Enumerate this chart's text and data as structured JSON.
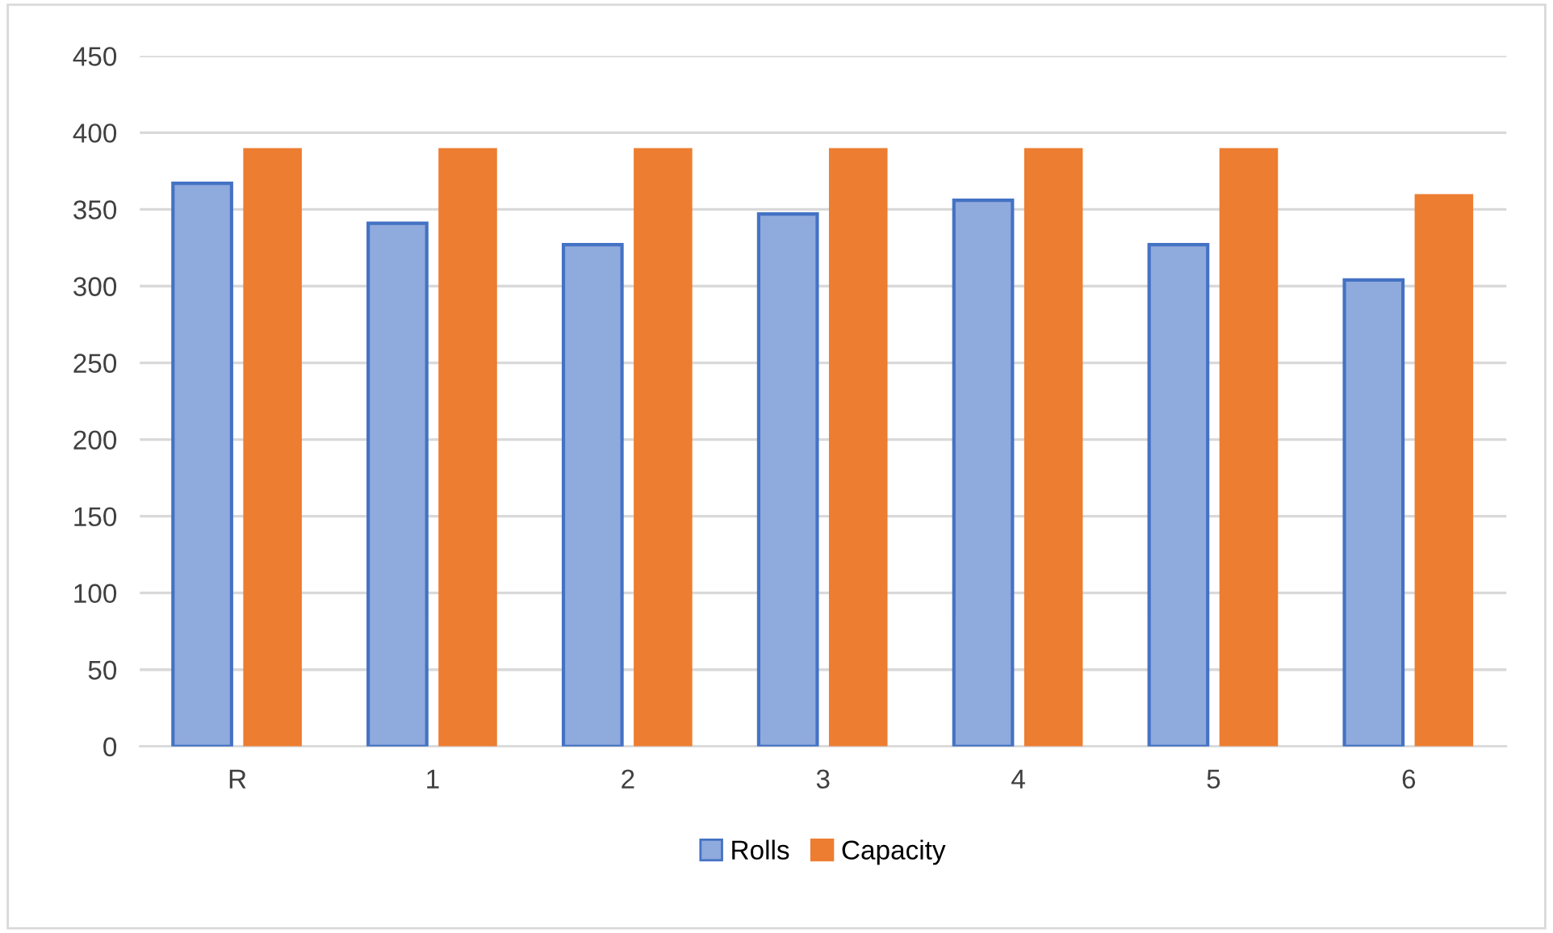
{
  "chart_data": {
    "type": "bar",
    "categories": [
      "R",
      "1",
      "2",
      "3",
      "4",
      "5",
      "6"
    ],
    "series": [
      {
        "name": "Rolls",
        "color": "#8faadc",
        "values": [
          367,
          341,
          327,
          347,
          356,
          327,
          304
        ]
      },
      {
        "name": "Capacity",
        "color": "#ed7d31",
        "values": [
          390,
          390,
          390,
          390,
          390,
          390,
          360
        ]
      }
    ],
    "ylim": [
      0,
      450
    ],
    "yticks": [
      0,
      50,
      100,
      150,
      200,
      250,
      300,
      350,
      400,
      450
    ],
    "grid": "y",
    "legend": "bottom"
  }
}
